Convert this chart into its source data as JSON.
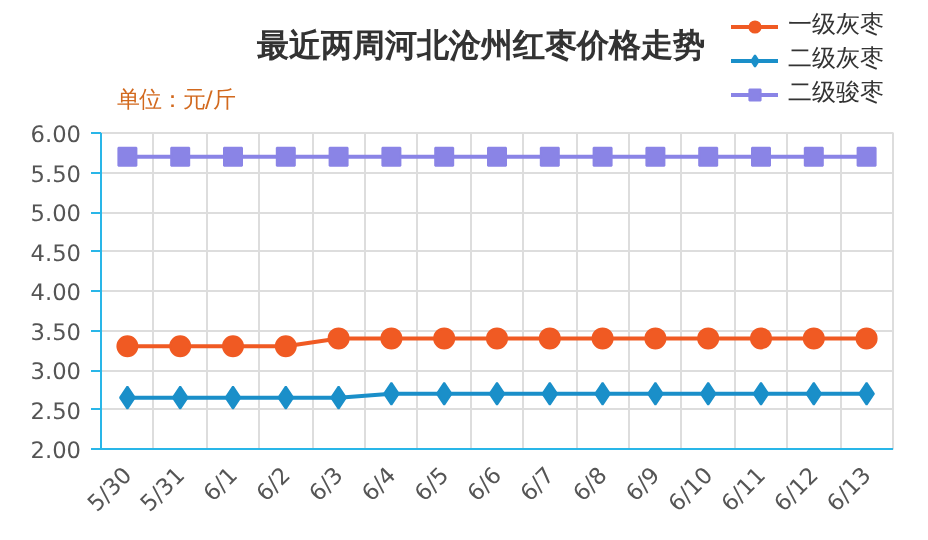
{
  "chart_data": {
    "type": "line",
    "title": "最近两周河北沧州红枣价格走势",
    "ylabel": "单位：元/斤",
    "categories": [
      "5/30",
      "5/31",
      "6/1",
      "6/2",
      "6/3",
      "6/4",
      "6/5",
      "6/6",
      "6/7",
      "6/8",
      "6/9",
      "6/10",
      "6/11",
      "6/12",
      "6/13"
    ],
    "series": [
      {
        "name": "一级灰枣",
        "color": "#f05a23",
        "marker": "circle",
        "values": [
          3.3,
          3.3,
          3.3,
          3.3,
          3.4,
          3.4,
          3.4,
          3.4,
          3.4,
          3.4,
          3.4,
          3.4,
          3.4,
          3.4,
          3.4
        ]
      },
      {
        "name": "二级灰枣",
        "color": "#1a8fc9",
        "marker": "diamond",
        "values": [
          2.65,
          2.65,
          2.65,
          2.65,
          2.65,
          2.7,
          2.7,
          2.7,
          2.7,
          2.7,
          2.7,
          2.7,
          2.7,
          2.7,
          2.7
        ]
      },
      {
        "name": "二级骏枣",
        "color": "#8a84e6",
        "marker": "square",
        "values": [
          5.7,
          5.7,
          5.7,
          5.7,
          5.7,
          5.7,
          5.7,
          5.7,
          5.7,
          5.7,
          5.7,
          5.7,
          5.7,
          5.7,
          5.7
        ]
      }
    ],
    "ylim": [
      2.0,
      6.0
    ],
    "yticks": [
      {
        "value": 2.0,
        "label": "2.00"
      },
      {
        "value": 2.5,
        "label": "2.50"
      },
      {
        "value": 3.0,
        "label": "3.00"
      },
      {
        "value": 3.5,
        "label": "3.50"
      },
      {
        "value": 4.0,
        "label": "4.00"
      },
      {
        "value": 4.5,
        "label": "4.50"
      },
      {
        "value": 5.0,
        "label": "5.00"
      },
      {
        "value": 5.5,
        "label": "5.50"
      },
      {
        "value": 6.0,
        "label": "6.00"
      }
    ],
    "grid": true,
    "legend": "top right",
    "line_style": "solid"
  }
}
